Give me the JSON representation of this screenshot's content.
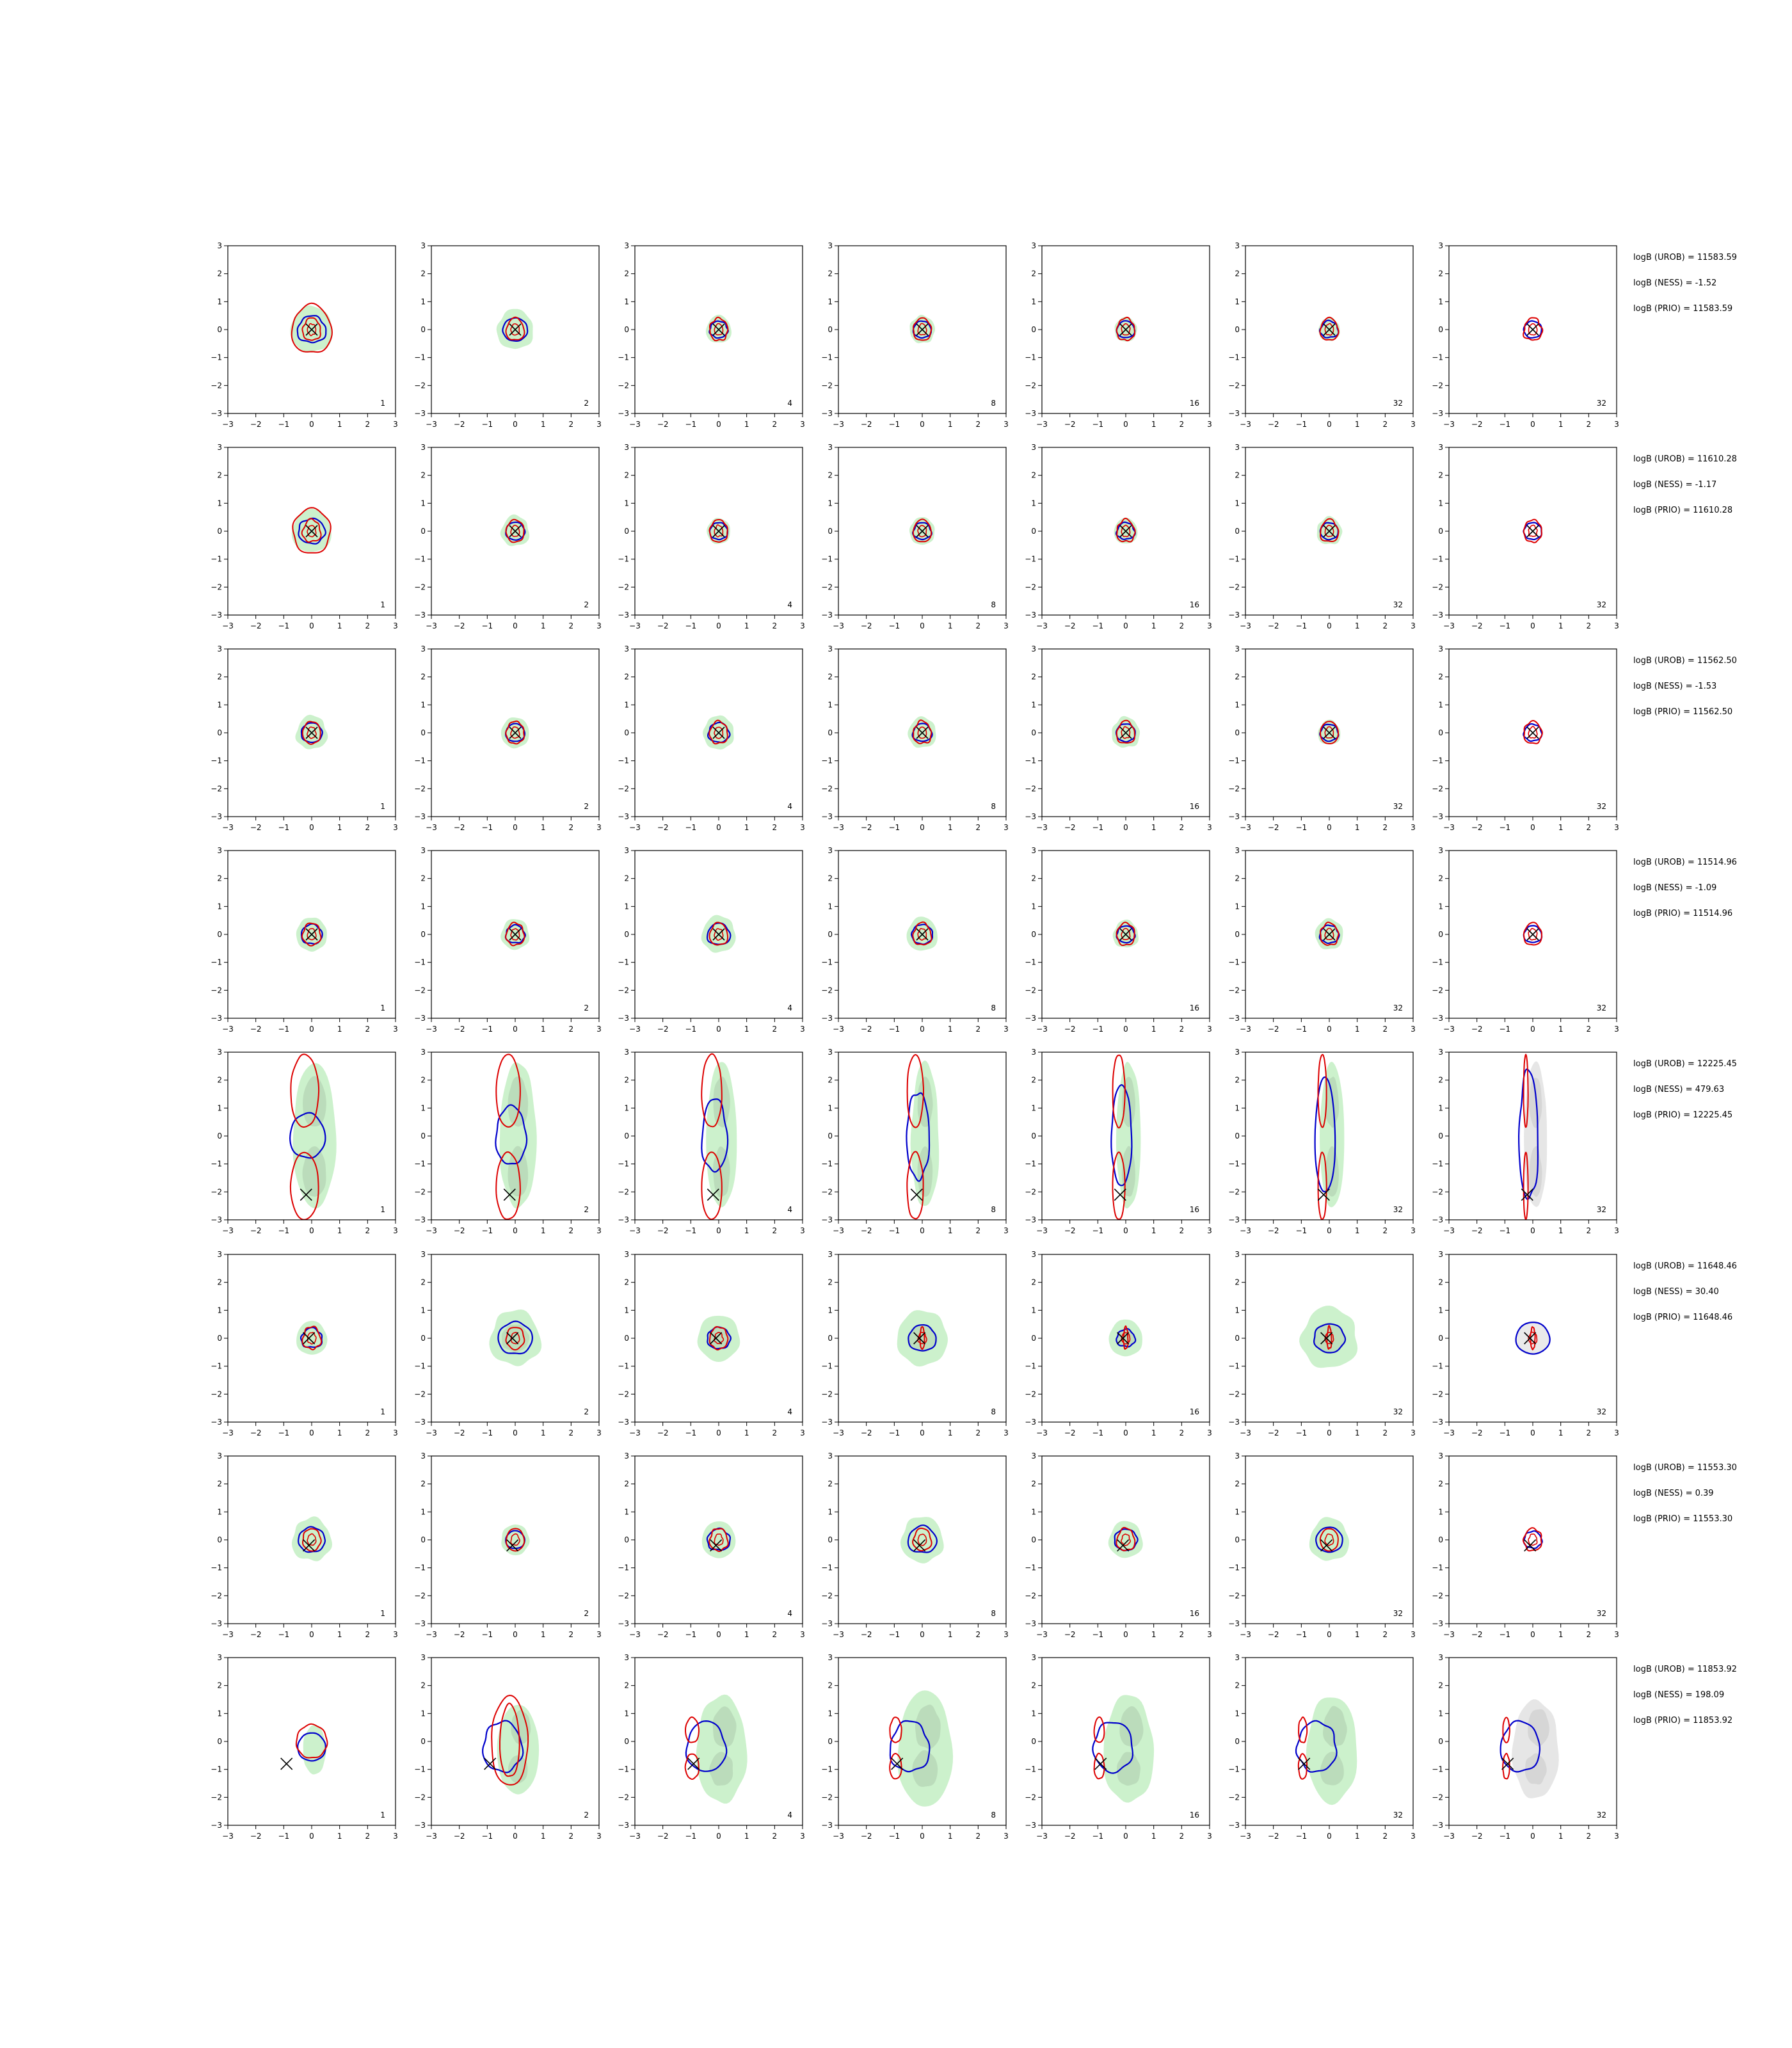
{
  "colors": {
    "ensemble_fill": "#8fe08f",
    "ensemble_fill_dark": "#9ab59a",
    "reference_fill": "#b8b8b8",
    "inner_contour": "#0000cc",
    "outer_contour": "#dd0000",
    "marker": "#000000"
  },
  "chart_data": {
    "type": "contour_grid",
    "xlim": [
      -3,
      3
    ],
    "ylim": [
      -3,
      3
    ],
    "xticks": [
      "−3",
      "−2",
      "−1",
      "0",
      "1",
      "2",
      "3"
    ],
    "yticks": [
      "3",
      "2",
      "1",
      "0",
      "−1",
      "−2",
      "−3"
    ],
    "column_labels": [
      "1",
      "2",
      "4",
      "8",
      "16",
      "32",
      "32"
    ],
    "rows": [
      {
        "marker": [
          0.0,
          0.0
        ],
        "shape": "blob",
        "spread": [
          0.75,
          0.65,
          0.45,
          0.45,
          0.4,
          0.38,
          0.35
        ],
        "annotations": [
          "logB (UROB) = 11583.59",
          "logB (NESS) = -1.52",
          "logB (PRIO) = 11583.59"
        ]
      },
      {
        "marker": [
          0.0,
          0.0
        ],
        "shape": "blob",
        "spread": [
          0.7,
          0.5,
          0.42,
          0.45,
          0.42,
          0.45,
          0.4
        ],
        "annotations": [
          "logB (UROB) = 11610.28",
          "logB (NESS) = -1.17",
          "logB (PRIO) = 11610.28"
        ]
      },
      {
        "marker": [
          0.0,
          0.0
        ],
        "shape": "blob",
        "spread": [
          0.55,
          0.5,
          0.55,
          0.5,
          0.5,
          0.4,
          0.35
        ],
        "annotations": [
          "logB (UROB) = 11562.50",
          "logB (NESS) = -1.53",
          "logB (PRIO) = 11562.50"
        ]
      },
      {
        "marker": [
          0.0,
          0.0
        ],
        "shape": "blob",
        "spread": [
          0.55,
          0.5,
          0.6,
          0.55,
          0.45,
          0.5,
          0.4
        ],
        "annotations": [
          "logB (UROB) = 11514.96",
          "logB (NESS) = -1.09",
          "logB (PRIO) = 11514.96"
        ]
      },
      {
        "marker": [
          -0.2,
          -2.1
        ],
        "shape": "bimodal",
        "spread": [
          1.4,
          1.2,
          1.0,
          0.9,
          0.8,
          0.8,
          0.75
        ],
        "annotations": [
          "logB (UROB) = 12225.45",
          "logB (NESS) = 479.63",
          "logB (PRIO) = 12225.45"
        ]
      },
      {
        "marker": [
          -0.1,
          0.0
        ],
        "shape": "blob",
        "spread": [
          0.55,
          0.9,
          0.75,
          0.9,
          0.6,
          1.0,
          1.1
        ],
        "annotations": [
          "logB (UROB) = 11648.46",
          "logB (NESS) = 30.40",
          "logB (PRIO) = 11648.46"
        ]
      },
      {
        "marker": [
          -0.1,
          -0.2
        ],
        "shape": "blob",
        "spread": [
          0.7,
          0.5,
          0.6,
          0.75,
          0.6,
          0.7,
          0.45
        ],
        "annotations": [
          "logB (UROB) = 11553.30",
          "logB (NESS) = 0.39",
          "logB (PRIO) = 11553.30"
        ]
      },
      {
        "marker": [
          -0.9,
          -0.8
        ],
        "shape": "crescent",
        "spread": [
          0.55,
          1.0,
          1.2,
          1.3,
          1.2,
          1.2,
          1.1
        ],
        "annotations": [
          "logB (UROB) = 11853.92",
          "logB (NESS) = 198.09",
          "logB (PRIO) = 11853.92"
        ]
      }
    ]
  }
}
